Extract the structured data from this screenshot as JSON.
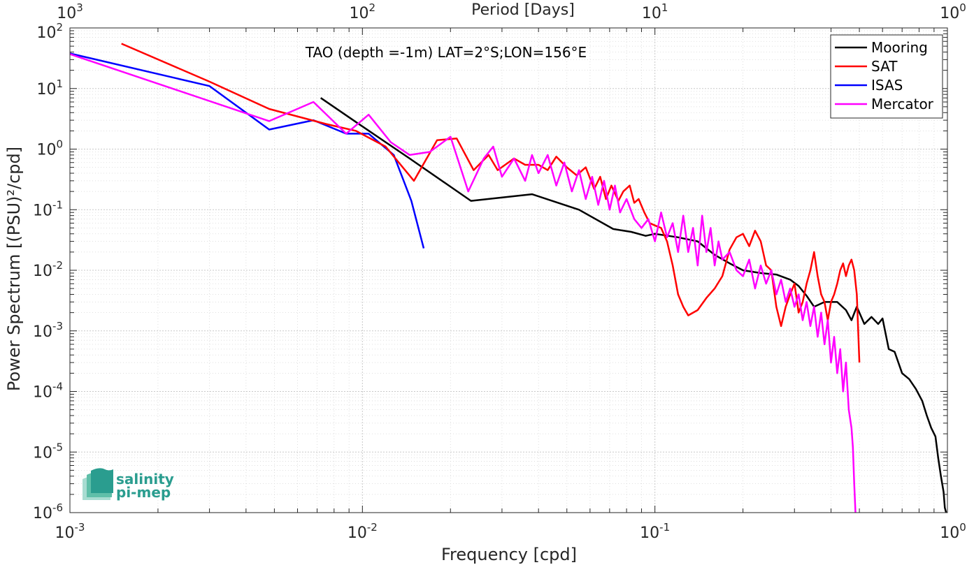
{
  "chart_data": {
    "type": "line",
    "title": "TAO (depth =-1m) LAT=2°S;LON=156°E",
    "xlabel": "Frequency [cpd]",
    "ylabel": "Power Spectrum [(PSU)²/cpd]",
    "top_xlabel": "Period [Days]",
    "x_scale": "log",
    "y_scale": "log",
    "xlim": [
      0.001,
      1
    ],
    "ylim": [
      1e-06,
      100
    ],
    "grid": true,
    "legend_position": "top-right",
    "x_ticks": [
      {
        "value": 0.001,
        "base": "10",
        "exp": "-3"
      },
      {
        "value": 0.01,
        "base": "10",
        "exp": "-2"
      },
      {
        "value": 0.1,
        "base": "10",
        "exp": "-1"
      },
      {
        "value": 1,
        "base": "10",
        "exp": "0"
      }
    ],
    "top_ticks": [
      {
        "value": 0.001,
        "base": "10",
        "exp": "3"
      },
      {
        "value": 0.01,
        "base": "10",
        "exp": "2"
      },
      {
        "value": 0.1,
        "base": "10",
        "exp": "1"
      },
      {
        "value": 1,
        "base": "10",
        "exp": "0"
      }
    ],
    "y_ticks": [
      {
        "value": 100,
        "base": "10",
        "exp": "2"
      },
      {
        "value": 10,
        "base": "10",
        "exp": "1"
      },
      {
        "value": 1,
        "base": "10",
        "exp": "0"
      },
      {
        "value": 0.1,
        "base": "10",
        "exp": "-1"
      },
      {
        "value": 0.01,
        "base": "10",
        "exp": "-2"
      },
      {
        "value": 0.001,
        "base": "10",
        "exp": "-3"
      },
      {
        "value": 0.0001,
        "base": "10",
        "exp": "-4"
      },
      {
        "value": 1e-05,
        "base": "10",
        "exp": "-5"
      },
      {
        "value": 1e-06,
        "base": "10",
        "exp": "-6"
      }
    ],
    "series": [
      {
        "name": "Mooring",
        "color": "#000000",
        "points": [
          [
            0.0072,
            7.0
          ],
          [
            0.0095,
            2.8
          ],
          [
            0.0145,
            0.7
          ],
          [
            0.0235,
            0.14
          ],
          [
            0.038,
            0.18
          ],
          [
            0.055,
            0.1
          ],
          [
            0.072,
            0.048
          ],
          [
            0.083,
            0.043
          ],
          [
            0.093,
            0.037
          ],
          [
            0.1,
            0.04
          ],
          [
            0.12,
            0.035
          ],
          [
            0.14,
            0.03
          ],
          [
            0.16,
            0.018
          ],
          [
            0.18,
            0.013
          ],
          [
            0.2,
            0.01
          ],
          [
            0.23,
            0.009
          ],
          [
            0.26,
            0.0085
          ],
          [
            0.29,
            0.007
          ],
          [
            0.31,
            0.0055
          ],
          [
            0.33,
            0.0038
          ],
          [
            0.35,
            0.0025
          ],
          [
            0.38,
            0.003
          ],
          [
            0.42,
            0.003
          ],
          [
            0.45,
            0.0022
          ],
          [
            0.47,
            0.0015
          ],
          [
            0.49,
            0.0025
          ],
          [
            0.52,
            0.0013
          ],
          [
            0.55,
            0.0017
          ],
          [
            0.58,
            0.0013
          ],
          [
            0.6,
            0.0016
          ],
          [
            0.63,
            0.0005
          ],
          [
            0.66,
            0.00045
          ],
          [
            0.7,
            0.0002
          ],
          [
            0.74,
            0.00016
          ],
          [
            0.78,
            0.00011
          ],
          [
            0.82,
            7e-05
          ],
          [
            0.85,
            4e-05
          ],
          [
            0.88,
            2.5e-05
          ],
          [
            0.91,
            1.8e-05
          ],
          [
            0.93,
            8e-06
          ],
          [
            0.95,
            4e-06
          ],
          [
            0.97,
            2.2e-06
          ],
          [
            0.98,
            1.2e-06
          ],
          [
            0.99,
            1e-06
          ]
        ]
      },
      {
        "name": "SAT",
        "color": "#ff0000",
        "points": [
          [
            0.0015,
            55
          ],
          [
            0.003,
            13
          ],
          [
            0.0048,
            4.6
          ],
          [
            0.0075,
            2.6
          ],
          [
            0.0095,
            2.0
          ],
          [
            0.012,
            1.1
          ],
          [
            0.015,
            0.3
          ],
          [
            0.018,
            1.4
          ],
          [
            0.021,
            1.5
          ],
          [
            0.024,
            0.45
          ],
          [
            0.027,
            0.8
          ],
          [
            0.029,
            0.45
          ],
          [
            0.033,
            0.7
          ],
          [
            0.036,
            0.55
          ],
          [
            0.04,
            0.55
          ],
          [
            0.043,
            0.45
          ],
          [
            0.046,
            0.75
          ],
          [
            0.05,
            0.5
          ],
          [
            0.054,
            0.37
          ],
          [
            0.058,
            0.5
          ],
          [
            0.062,
            0.22
          ],
          [
            0.065,
            0.35
          ],
          [
            0.068,
            0.15
          ],
          [
            0.071,
            0.25
          ],
          [
            0.075,
            0.14
          ],
          [
            0.078,
            0.2
          ],
          [
            0.082,
            0.25
          ],
          [
            0.085,
            0.13
          ],
          [
            0.088,
            0.15
          ],
          [
            0.092,
            0.09
          ],
          [
            0.096,
            0.06
          ],
          [
            0.1,
            0.055
          ],
          [
            0.105,
            0.05
          ],
          [
            0.11,
            0.03
          ],
          [
            0.115,
            0.012
          ],
          [
            0.12,
            0.004
          ],
          [
            0.125,
            0.0025
          ],
          [
            0.13,
            0.0018
          ],
          [
            0.14,
            0.0022
          ],
          [
            0.15,
            0.0035
          ],
          [
            0.16,
            0.005
          ],
          [
            0.17,
            0.008
          ],
          [
            0.18,
            0.022
          ],
          [
            0.19,
            0.035
          ],
          [
            0.2,
            0.04
          ],
          [
            0.21,
            0.025
          ],
          [
            0.22,
            0.045
          ],
          [
            0.23,
            0.03
          ],
          [
            0.24,
            0.012
          ],
          [
            0.25,
            0.01
          ],
          [
            0.26,
            0.0025
          ],
          [
            0.27,
            0.0012
          ],
          [
            0.28,
            0.0025
          ],
          [
            0.29,
            0.004
          ],
          [
            0.3,
            0.006
          ],
          [
            0.31,
            0.002
          ],
          [
            0.32,
            0.003
          ],
          [
            0.33,
            0.006
          ],
          [
            0.34,
            0.01
          ],
          [
            0.35,
            0.02
          ],
          [
            0.36,
            0.008
          ],
          [
            0.37,
            0.004
          ],
          [
            0.38,
            0.003
          ],
          [
            0.39,
            0.0015
          ],
          [
            0.4,
            0.003
          ],
          [
            0.41,
            0.004
          ],
          [
            0.42,
            0.006
          ],
          [
            0.43,
            0.01
          ],
          [
            0.44,
            0.013
          ],
          [
            0.45,
            0.008
          ],
          [
            0.46,
            0.012
          ],
          [
            0.47,
            0.015
          ],
          [
            0.48,
            0.01
          ],
          [
            0.49,
            0.004
          ],
          [
            0.5,
            0.0003
          ]
        ]
      },
      {
        "name": "ISAS",
        "color": "#0000ff",
        "points": [
          [
            0.001,
            38
          ],
          [
            0.003,
            11
          ],
          [
            0.0048,
            2.1
          ],
          [
            0.0068,
            3.0
          ],
          [
            0.0088,
            1.8
          ],
          [
            0.0105,
            1.8
          ],
          [
            0.0128,
            0.8
          ],
          [
            0.0147,
            0.14
          ],
          [
            0.0162,
            0.023
          ]
        ]
      },
      {
        "name": "Mercator",
        "color": "#ff00ff",
        "points": [
          [
            0.001,
            37
          ],
          [
            0.0048,
            2.9
          ],
          [
            0.0068,
            6.0
          ],
          [
            0.0088,
            1.8
          ],
          [
            0.0105,
            3.7
          ],
          [
            0.0125,
            1.3
          ],
          [
            0.0145,
            0.8
          ],
          [
            0.017,
            0.9
          ],
          [
            0.02,
            1.6
          ],
          [
            0.023,
            0.2
          ],
          [
            0.026,
            0.7
          ],
          [
            0.028,
            1.1
          ],
          [
            0.03,
            0.35
          ],
          [
            0.033,
            0.7
          ],
          [
            0.036,
            0.3
          ],
          [
            0.038,
            0.8
          ],
          [
            0.04,
            0.4
          ],
          [
            0.043,
            0.8
          ],
          [
            0.046,
            0.25
          ],
          [
            0.049,
            0.6
          ],
          [
            0.052,
            0.2
          ],
          [
            0.055,
            0.45
          ],
          [
            0.058,
            0.15
          ],
          [
            0.061,
            0.35
          ],
          [
            0.064,
            0.12
          ],
          [
            0.067,
            0.3
          ],
          [
            0.07,
            0.1
          ],
          [
            0.073,
            0.25
          ],
          [
            0.076,
            0.09
          ],
          [
            0.08,
            0.15
          ],
          [
            0.085,
            0.07
          ],
          [
            0.09,
            0.05
          ],
          [
            0.095,
            0.07
          ],
          [
            0.1,
            0.03
          ],
          [
            0.105,
            0.09
          ],
          [
            0.11,
            0.035
          ],
          [
            0.115,
            0.06
          ],
          [
            0.12,
            0.02
          ],
          [
            0.125,
            0.08
          ],
          [
            0.13,
            0.02
          ],
          [
            0.135,
            0.05
          ],
          [
            0.14,
            0.012
          ],
          [
            0.145,
            0.08
          ],
          [
            0.15,
            0.02
          ],
          [
            0.155,
            0.05
          ],
          [
            0.16,
            0.012
          ],
          [
            0.165,
            0.03
          ],
          [
            0.17,
            0.015
          ],
          [
            0.18,
            0.02
          ],
          [
            0.19,
            0.01
          ],
          [
            0.2,
            0.008
          ],
          [
            0.21,
            0.015
          ],
          [
            0.22,
            0.005
          ],
          [
            0.23,
            0.012
          ],
          [
            0.24,
            0.006
          ],
          [
            0.25,
            0.01
          ],
          [
            0.26,
            0.004
          ],
          [
            0.27,
            0.007
          ],
          [
            0.28,
            0.003
          ],
          [
            0.29,
            0.005
          ],
          [
            0.3,
            0.0025
          ],
          [
            0.31,
            0.004
          ],
          [
            0.32,
            0.0015
          ],
          [
            0.33,
            0.003
          ],
          [
            0.34,
            0.0012
          ],
          [
            0.35,
            0.0025
          ],
          [
            0.36,
            0.0008
          ],
          [
            0.37,
            0.002
          ],
          [
            0.38,
            0.0006
          ],
          [
            0.39,
            0.0015
          ],
          [
            0.4,
            0.0003
          ],
          [
            0.41,
            0.0008
          ],
          [
            0.42,
            0.0002
          ],
          [
            0.43,
            0.0005
          ],
          [
            0.44,
            0.0001
          ],
          [
            0.45,
            0.0003
          ],
          [
            0.46,
            5e-05
          ],
          [
            0.47,
            2.5e-05
          ],
          [
            0.475,
            1.2e-05
          ],
          [
            0.48,
            3e-06
          ],
          [
            0.485,
            1e-06
          ]
        ]
      }
    ]
  },
  "logo": {
    "line1": "salinity",
    "line2": "pi-mep",
    "color": "#2a9d8f"
  }
}
